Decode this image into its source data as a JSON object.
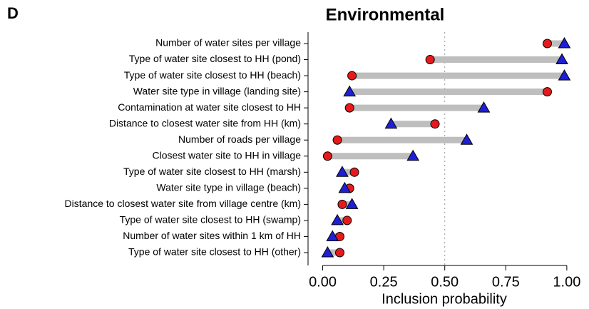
{
  "chart_data": {
    "type": "dumbbell",
    "panel_label": "D",
    "title": "Environmental",
    "x_label": "Inclusion probability",
    "categories": [
      "Number of water sites per village",
      "Type of water site closest to HH (pond)",
      "Type of water site closest to HH (beach)",
      "Water site type in village (landing site)",
      "Contamination at water site closest to HH",
      "Distance to closest water site from HH (km)",
      "Number of roads per village",
      "Closest water site to HH in village",
      "Type of water site closest to HH (marsh)",
      "Water site type in village (beach)",
      "Distance to closest water site from village centre (km)",
      "Type of water site closest to HH (swamp)",
      "Number of water sites within 1 km of HH",
      "Type of water site closest to HH (other)"
    ],
    "series": [
      {
        "color": "#e41a1c",
        "marker": "circle",
        "values": [
          0.92,
          0.44,
          0.12,
          0.92,
          0.11,
          0.46,
          0.06,
          0.02,
          0.13,
          0.11,
          0.08,
          0.1,
          0.07,
          0.07
        ]
      },
      {
        "color": "#1f1fd6",
        "marker": "triangle",
        "values": [
          0.99,
          0.98,
          0.99,
          0.11,
          0.66,
          0.28,
          0.59,
          0.37,
          0.08,
          0.09,
          0.12,
          0.06,
          0.04,
          0.02
        ]
      }
    ],
    "connector_color": "#bebebe",
    "reference_line": 0.5,
    "xlim": [
      -0.06,
      1.05
    ],
    "xticks": [
      {
        "value": 0,
        "label": "0.00"
      },
      {
        "value": 0.25,
        "label": "0.25"
      },
      {
        "value": 0.5,
        "label": "0.50"
      },
      {
        "value": 0.75,
        "label": "0.75"
      },
      {
        "value": 1,
        "label": "1.00"
      }
    ]
  }
}
